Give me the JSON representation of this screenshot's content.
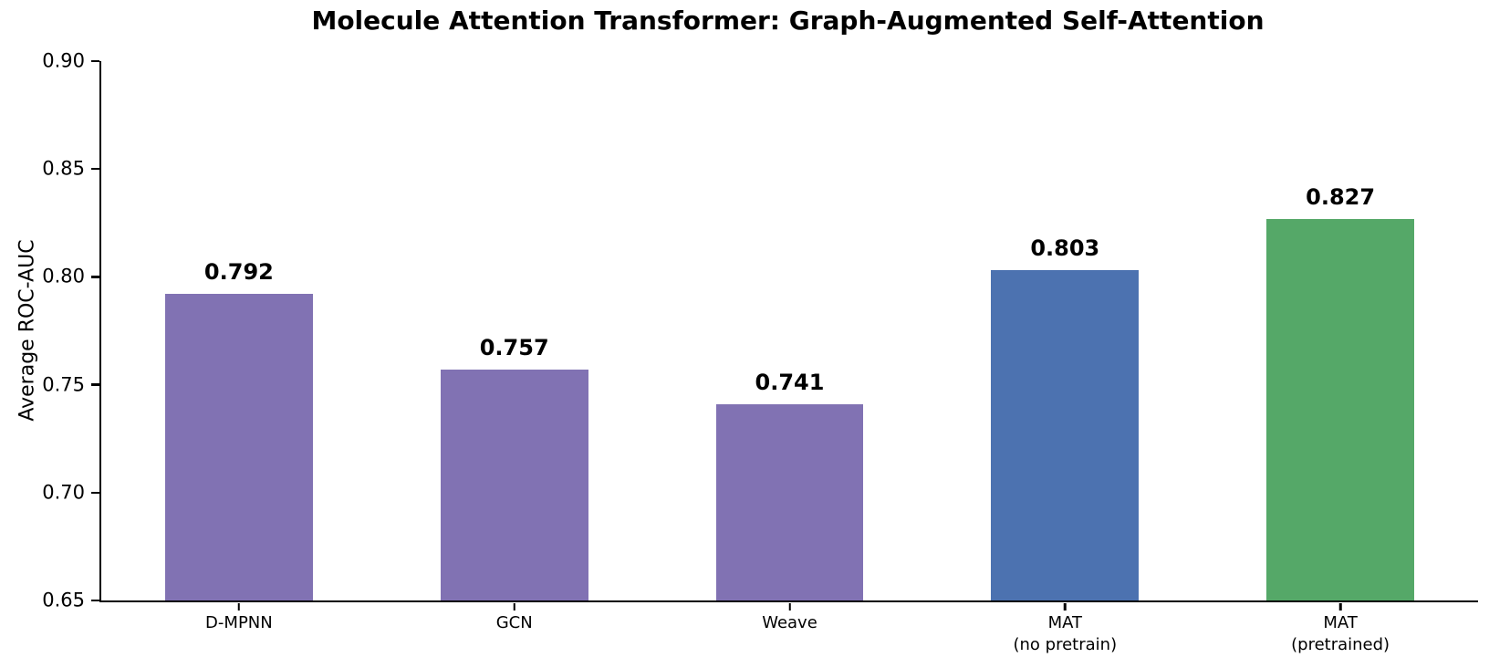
{
  "chart_data": {
    "type": "bar",
    "title": "Molecule Attention Transformer: Graph-Augmented Self-Attention",
    "xlabel": "",
    "ylabel": "Average ROC-AUC",
    "categories": [
      "D-MPNN",
      "GCN",
      "Weave",
      "MAT\n(no pretrain)",
      "MAT\n(pretrained)"
    ],
    "values": [
      0.792,
      0.757,
      0.741,
      0.803,
      0.827
    ],
    "bar_labels": [
      "0.792",
      "0.757",
      "0.741",
      "0.803",
      "0.827"
    ],
    "bar_colors": [
      "#8172b3",
      "#8172b3",
      "#8172b3",
      "#4c72b0",
      "#55a868"
    ],
    "ylim": [
      0.65,
      0.9
    ],
    "yticks": [
      0.65,
      0.7,
      0.75,
      0.8,
      0.85,
      0.9
    ],
    "ytick_labels": [
      "0.65",
      "0.70",
      "0.75",
      "0.80",
      "0.85",
      "0.90"
    ],
    "grid": false,
    "legend": null,
    "background_color": "#ffffff",
    "axis_color": "#000000",
    "text_color": "#000000",
    "bar_width_fraction": 0.536
  }
}
